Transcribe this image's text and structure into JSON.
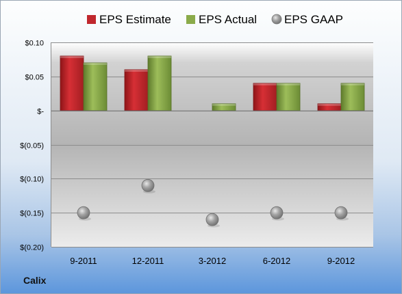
{
  "company": "Calix",
  "legend": {
    "estimate": "EPS Estimate",
    "actual": "EPS Actual",
    "gaap": "EPS GAAP"
  },
  "colors": {
    "estimate": "#c0272d",
    "actual": "#8bab4a",
    "gaap": "#9a9a9a"
  },
  "chart_data": {
    "type": "bar",
    "categories": [
      "9-2011",
      "12-2011",
      "3-2012",
      "6-2012",
      "9-2012"
    ],
    "series": [
      {
        "name": "EPS Estimate",
        "values": [
          0.08,
          0.06,
          0.0,
          0.04,
          0.01
        ]
      },
      {
        "name": "EPS Actual",
        "values": [
          0.07,
          0.08,
          0.01,
          0.04,
          0.04
        ]
      },
      {
        "name": "EPS GAAP",
        "values": [
          -0.15,
          -0.11,
          -0.16,
          -0.15,
          -0.15
        ]
      }
    ],
    "series_style": [
      "bar",
      "bar",
      "marker"
    ],
    "ylim": [
      -0.2,
      0.1
    ],
    "yticks": [
      0.1,
      0.05,
      0,
      -0.05,
      -0.1,
      -0.15,
      -0.2
    ],
    "ytick_labels": [
      "$0.10",
      "$0.05",
      "$-",
      "$(0.05)",
      "$(0.10)",
      "$(0.15)",
      "$(0.20)"
    ],
    "grid": true,
    "legend_position": "top"
  }
}
